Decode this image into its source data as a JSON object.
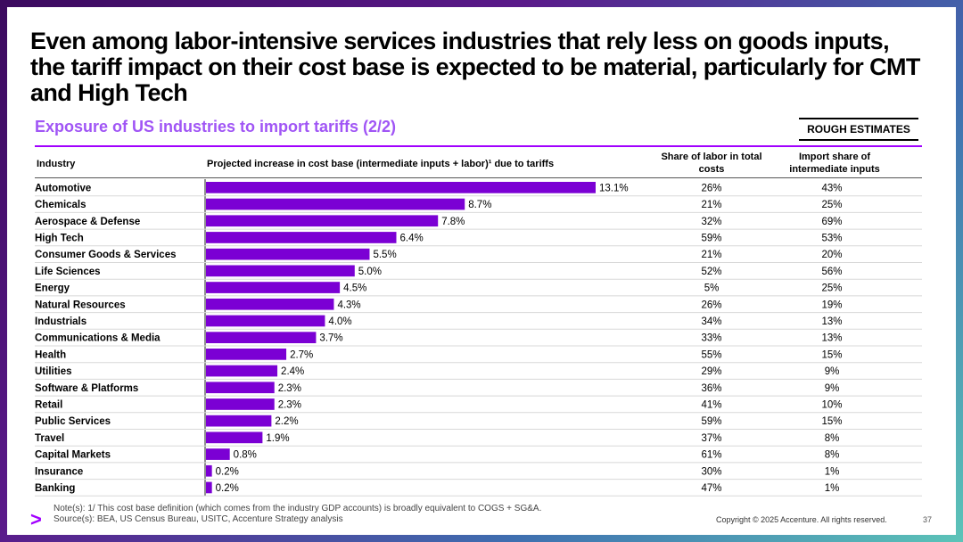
{
  "title": "Even among labor-intensive services industries that rely less on goods inputs, the tariff impact on their cost base is expected to be material, particularly for CMT and High Tech",
  "subtitle": "Exposure of US industries to import tariffs (2/2)",
  "badge": "ROUGH ESTIMATES",
  "headers": {
    "industry": "Industry",
    "projected": "Projected increase in cost base (intermediate inputs + labor)¹ due to tariffs",
    "labor": "Share of labor in total costs",
    "import": "Import share of intermediate inputs"
  },
  "chart_data": {
    "type": "bar",
    "orientation": "horizontal",
    "title": "Projected increase in cost base (intermediate inputs + labor)¹ due to tariffs",
    "categories": [
      "Automotive",
      "Chemicals",
      "Aerospace & Defense",
      "High Tech",
      "Consumer Goods & Services",
      "Life Sciences",
      "Energy",
      "Natural Resources",
      "Industrials",
      "Communications & Media",
      "Health",
      "Utilities",
      "Software & Platforms",
      "Retail",
      "Public Services",
      "Travel",
      "Capital Markets",
      "Insurance",
      "Banking"
    ],
    "values": [
      13.1,
      8.7,
      7.8,
      6.4,
      5.5,
      5.0,
      4.5,
      4.3,
      4.0,
      3.7,
      2.7,
      2.4,
      2.3,
      2.3,
      2.2,
      1.9,
      0.8,
      0.2,
      0.2
    ],
    "value_labels": [
      "13.1%",
      "8.7%",
      "7.8%",
      "6.4%",
      "5.5%",
      "5.0%",
      "4.5%",
      "4.3%",
      "4.0%",
      "3.7%",
      "2.7%",
      "2.4%",
      "2.3%",
      "2.3%",
      "2.2%",
      "1.9%",
      "0.8%",
      "0.2%",
      "0.2%"
    ],
    "labor_share": [
      "26%",
      "21%",
      "32%",
      "59%",
      "21%",
      "52%",
      "5%",
      "26%",
      "34%",
      "33%",
      "55%",
      "29%",
      "36%",
      "41%",
      "59%",
      "37%",
      "61%",
      "30%",
      "47%"
    ],
    "import_share": [
      "43%",
      "25%",
      "69%",
      "53%",
      "20%",
      "56%",
      "25%",
      "19%",
      "13%",
      "13%",
      "15%",
      "9%",
      "9%",
      "10%",
      "15%",
      "8%",
      "8%",
      "1%",
      "1%"
    ],
    "unit": "%",
    "xlim": [
      0,
      13.1
    ]
  },
  "colors": {
    "bar": "#7b00d4",
    "accent": "#a100ff",
    "subtitle": "#a055f5"
  },
  "footnote": {
    "note": "Note(s): 1/ This cost base definition (which comes from the industry GDP accounts) is broadly equivalent to COGS + SG&A.",
    "source": "Source(s): BEA, US Census Bureau, USITC, Accenture Strategy analysis"
  },
  "copyright": "Copyright © 2025 Accenture. All rights reserved.",
  "page_number": "37",
  "logo_glyph": ">"
}
